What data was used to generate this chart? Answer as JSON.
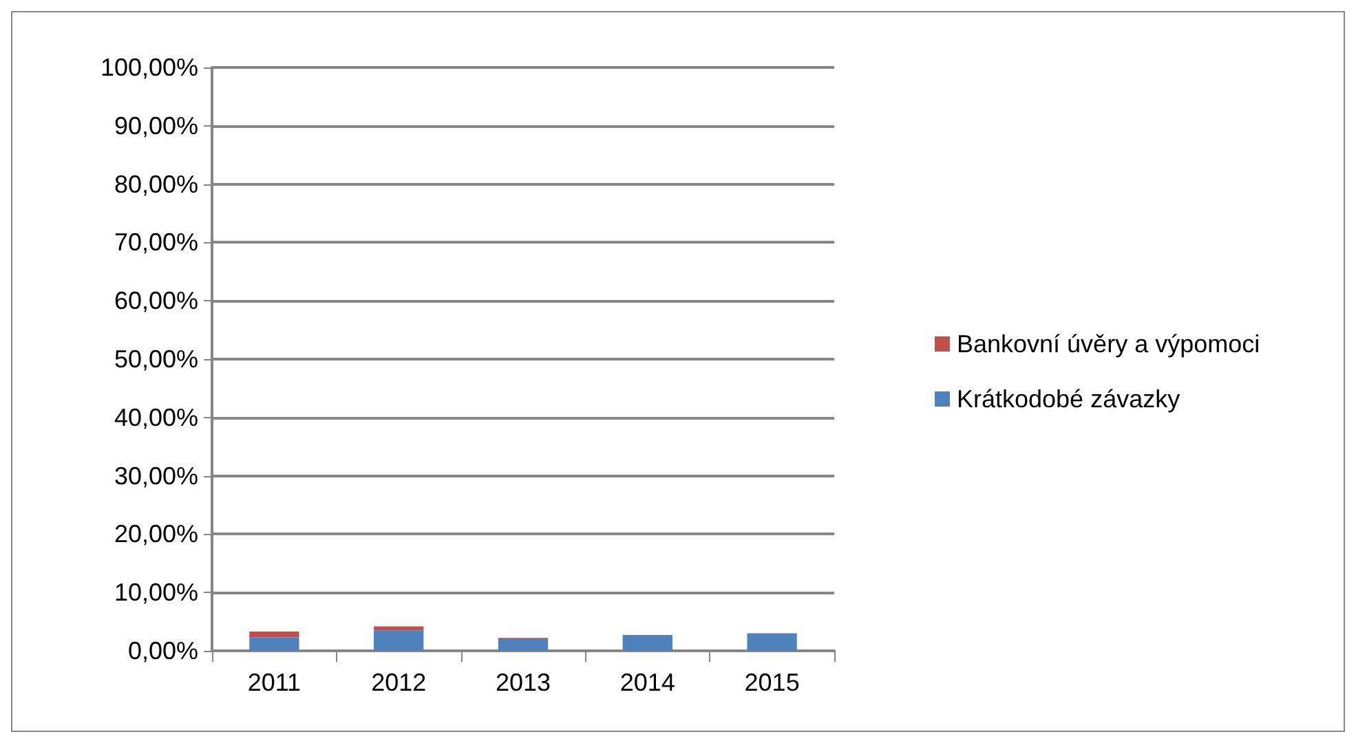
{
  "chart_data": {
    "type": "bar",
    "stacked": true,
    "categories": [
      "2011",
      "2012",
      "2013",
      "2014",
      "2015"
    ],
    "series": [
      {
        "name": "Krátkodobé závazky",
        "color": "#4f81bd",
        "values": [
          2.3,
          3.5,
          2.0,
          2.7,
          3.0
        ]
      },
      {
        "name": "Bankovní úvěry a výpomoci",
        "color": "#c0504d",
        "values": [
          1.0,
          0.7,
          0.2,
          0,
          0
        ]
      }
    ],
    "ylim": [
      0,
      100
    ],
    "yticks": [
      {
        "value": 0,
        "label": "0,00%"
      },
      {
        "value": 10,
        "label": "10,00%"
      },
      {
        "value": 20,
        "label": "20,00%"
      },
      {
        "value": 30,
        "label": "30,00%"
      },
      {
        "value": 40,
        "label": "40,00%"
      },
      {
        "value": 50,
        "label": "50,00%"
      },
      {
        "value": 60,
        "label": "60,00%"
      },
      {
        "value": 70,
        "label": "70,00%"
      },
      {
        "value": 80,
        "label": "80,00%"
      },
      {
        "value": 90,
        "label": "90,00%"
      },
      {
        "value": 100,
        "label": "100,00%"
      }
    ],
    "grid": "y",
    "legend": "right"
  }
}
